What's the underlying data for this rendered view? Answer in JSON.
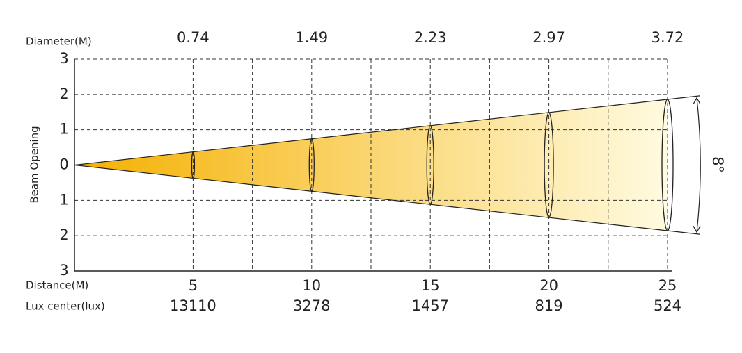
{
  "chart_data": {
    "type": "beam",
    "x_label": "Distance(M)",
    "y_label": "Beam Opening",
    "angle_label": "8°",
    "x": [
      5,
      10,
      15,
      20,
      25
    ],
    "series": [
      {
        "name": "Diameter(M)",
        "values": [
          0.74,
          1.49,
          2.23,
          2.97,
          3.72
        ]
      },
      {
        "name": "Lux center(lux)",
        "values": [
          13110,
          3278,
          1457,
          819,
          524
        ]
      }
    ],
    "xlim": [
      0,
      25
    ],
    "xticks": [
      5,
      7.5,
      10,
      12.5,
      15,
      17.5,
      20,
      22.5,
      25
    ],
    "ylim": [
      -3,
      3
    ],
    "yticks": [
      {
        "value": -3,
        "label": "3"
      },
      {
        "value": -2,
        "label": "2"
      },
      {
        "value": -1,
        "label": "1"
      },
      0,
      1,
      2,
      3
    ],
    "grid": true,
    "beam_colors": [
      "#f5b000",
      "#fffbe0"
    ]
  }
}
